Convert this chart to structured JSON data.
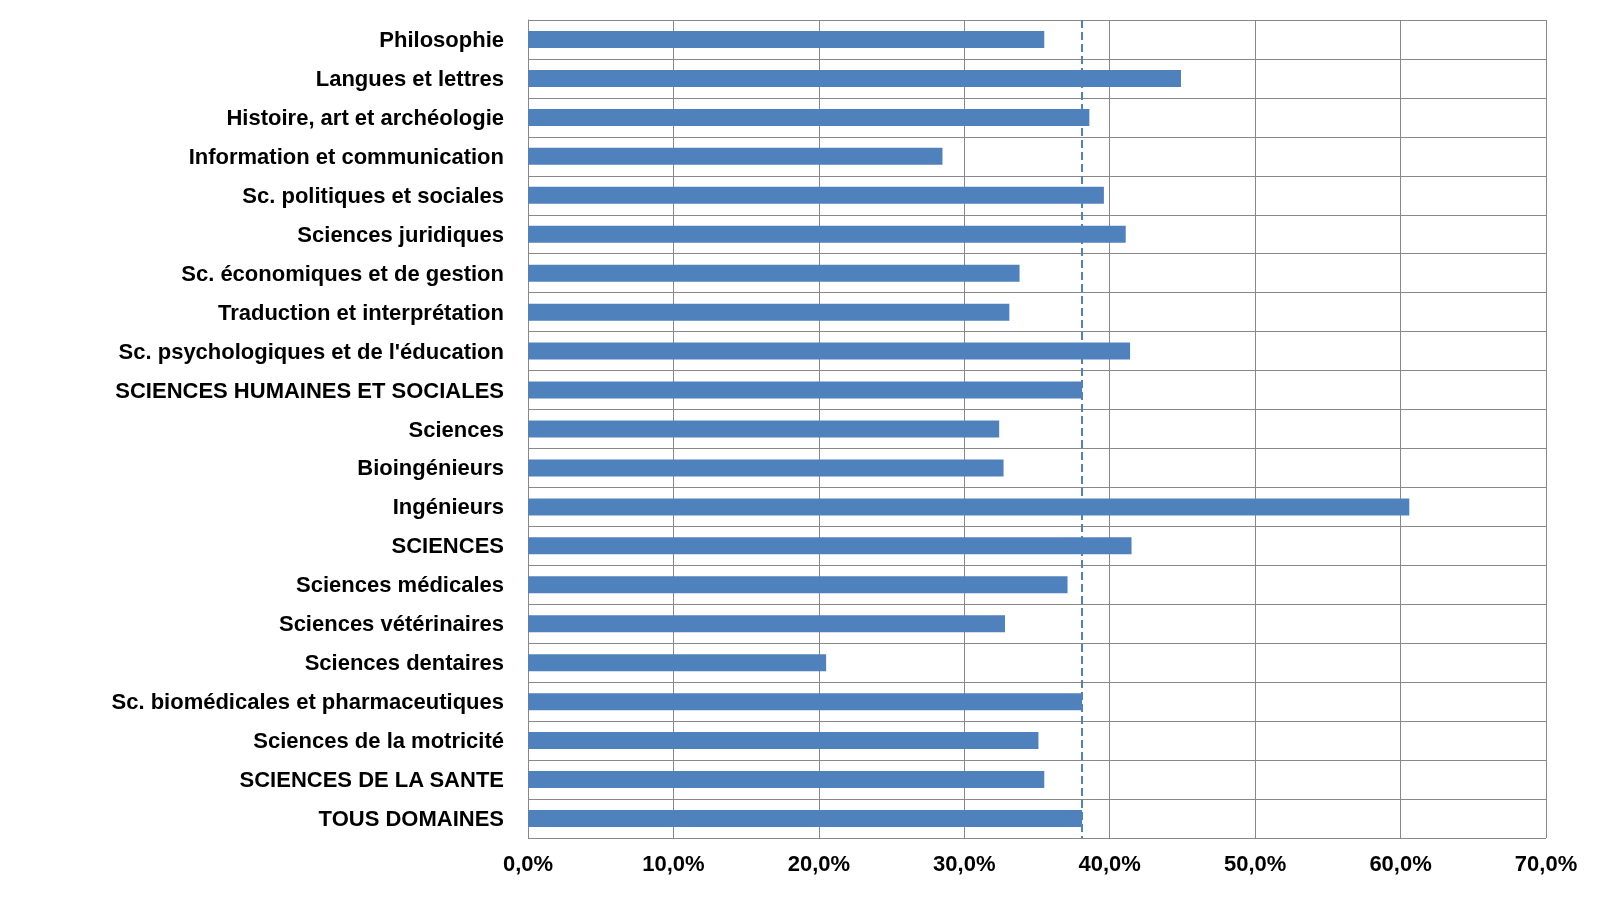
{
  "chart_data": {
    "type": "bar",
    "orientation": "horizontal",
    "categories": [
      "Philosophie",
      "Langues et lettres",
      "Histoire, art et archéologie",
      "Information et communication",
      "Sc. politiques et sociales",
      "Sciences juridiques",
      "Sc. économiques et de gestion",
      "Traduction et interprétation",
      "Sc. psychologiques et de l'éducation",
      "SCIENCES HUMAINES ET SOCIALES",
      "Sciences",
      "Bioingénieurs",
      "Ingénieurs",
      "SCIENCES",
      "Sciences médicales",
      "Sciences vétérinaires",
      "Sciences dentaires",
      "Sc. biomédicales et pharmaceutiques",
      "Sciences de la motricité",
      "SCIENCES DE LA SANTE",
      "TOUS DOMAINES"
    ],
    "values": [
      35.5,
      44.9,
      38.6,
      28.5,
      39.6,
      41.1,
      33.8,
      33.1,
      41.4,
      38.1,
      32.4,
      32.7,
      60.6,
      41.5,
      37.1,
      32.8,
      20.5,
      38.1,
      35.1,
      35.5,
      38.1
    ],
    "color": "#4f81bd",
    "xlim": [
      0,
      70
    ],
    "xticks": [
      {
        "value": 0,
        "label": "0,0%"
      },
      {
        "value": 10,
        "label": "10,0%"
      },
      {
        "value": 20,
        "label": "20,0%"
      },
      {
        "value": 30,
        "label": "30,0%"
      },
      {
        "value": 40,
        "label": "40,0%"
      },
      {
        "value": 50,
        "label": "50,0%"
      },
      {
        "value": 60,
        "label": "60,0%"
      },
      {
        "value": 70,
        "label": "70,0%"
      }
    ],
    "ref_lines": [
      {
        "axis": "x",
        "value": 38.1,
        "color": "#4f81bd",
        "line_style": "dashed"
      }
    ],
    "grid": true
  }
}
